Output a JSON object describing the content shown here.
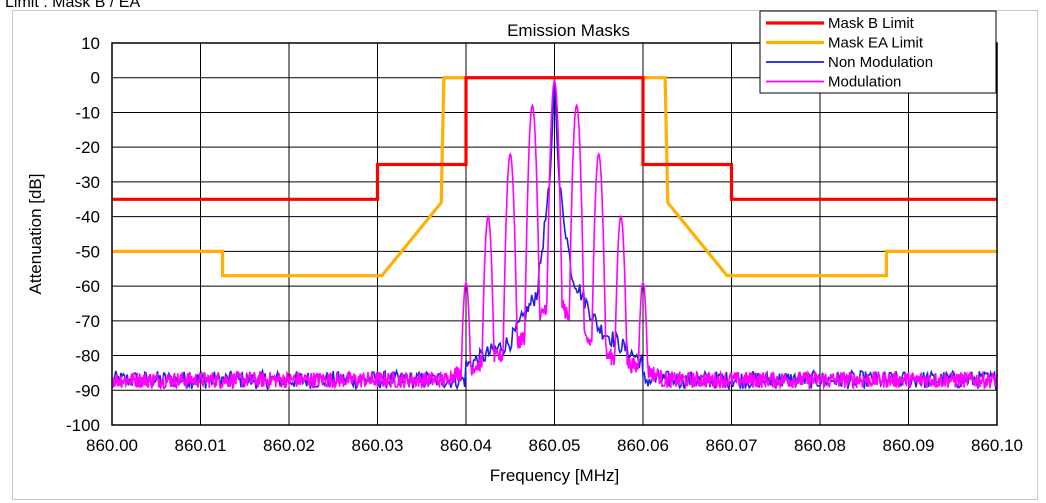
{
  "caption": "Limit : Mask B / EA",
  "chart_data": {
    "type": "line",
    "title": "Emission Masks",
    "xlabel": "Frequency [MHz]",
    "ylabel": "Attenuation [dB]",
    "xlim": [
      860.0,
      860.1
    ],
    "ylim": [
      -100,
      10
    ],
    "x_ticks": [
      "860.00",
      "860.01",
      "860.02",
      "860.03",
      "860.04",
      "860.05",
      "860.06",
      "860.07",
      "860.08",
      "860.09",
      "860.10"
    ],
    "y_ticks": [
      "10",
      "0",
      "-10",
      "-20",
      "-30",
      "-40",
      "-50",
      "-60",
      "-70",
      "-80",
      "-90",
      "-100"
    ],
    "grid": true,
    "legend_position": "top-right",
    "series": [
      {
        "name": "Mask B Limit",
        "color": "#ff0000",
        "points": [
          [
            860.0,
            -35
          ],
          [
            860.03,
            -35
          ],
          [
            860.03,
            -25
          ],
          [
            860.04,
            -25
          ],
          [
            860.04,
            0
          ],
          [
            860.06,
            0
          ],
          [
            860.06,
            -25
          ],
          [
            860.07,
            -25
          ],
          [
            860.07,
            -35
          ],
          [
            860.1,
            -35
          ]
        ]
      },
      {
        "name": "Mask EA Limit",
        "color": "#ffb000",
        "points": [
          [
            860.0,
            -50
          ],
          [
            860.0125,
            -50
          ],
          [
            860.0125,
            -57
          ],
          [
            860.0305,
            -57
          ],
          [
            860.0372,
            -36
          ],
          [
            860.0375,
            0
          ],
          [
            860.0625,
            0
          ],
          [
            860.0628,
            -36
          ],
          [
            860.0695,
            -57
          ],
          [
            860.0875,
            -57
          ],
          [
            860.0875,
            -50
          ],
          [
            860.1,
            -50
          ]
        ]
      },
      {
        "name": "Non Modulation",
        "color": "#2020e0",
        "noise_floor": -87,
        "peak": [
          860.05,
          0
        ],
        "profile": [
          [
            860.04,
            -83
          ],
          [
            860.045,
            -76
          ],
          [
            860.048,
            -62
          ],
          [
            860.0495,
            -30
          ],
          [
            860.05,
            0
          ],
          [
            860.0505,
            -30
          ],
          [
            860.052,
            -57
          ],
          [
            860.055,
            -72
          ],
          [
            860.06,
            -82
          ]
        ]
      },
      {
        "name": "Modulation",
        "color": "#ff00ff",
        "noise_floor": -87,
        "peaks": [
          [
            860.04,
            -59
          ],
          [
            860.0425,
            -40
          ],
          [
            860.045,
            -22
          ],
          [
            860.0475,
            -8
          ],
          [
            860.05,
            -1
          ],
          [
            860.0525,
            -8
          ],
          [
            860.055,
            -22
          ],
          [
            860.0575,
            -40
          ],
          [
            860.06,
            -59
          ]
        ]
      }
    ]
  }
}
